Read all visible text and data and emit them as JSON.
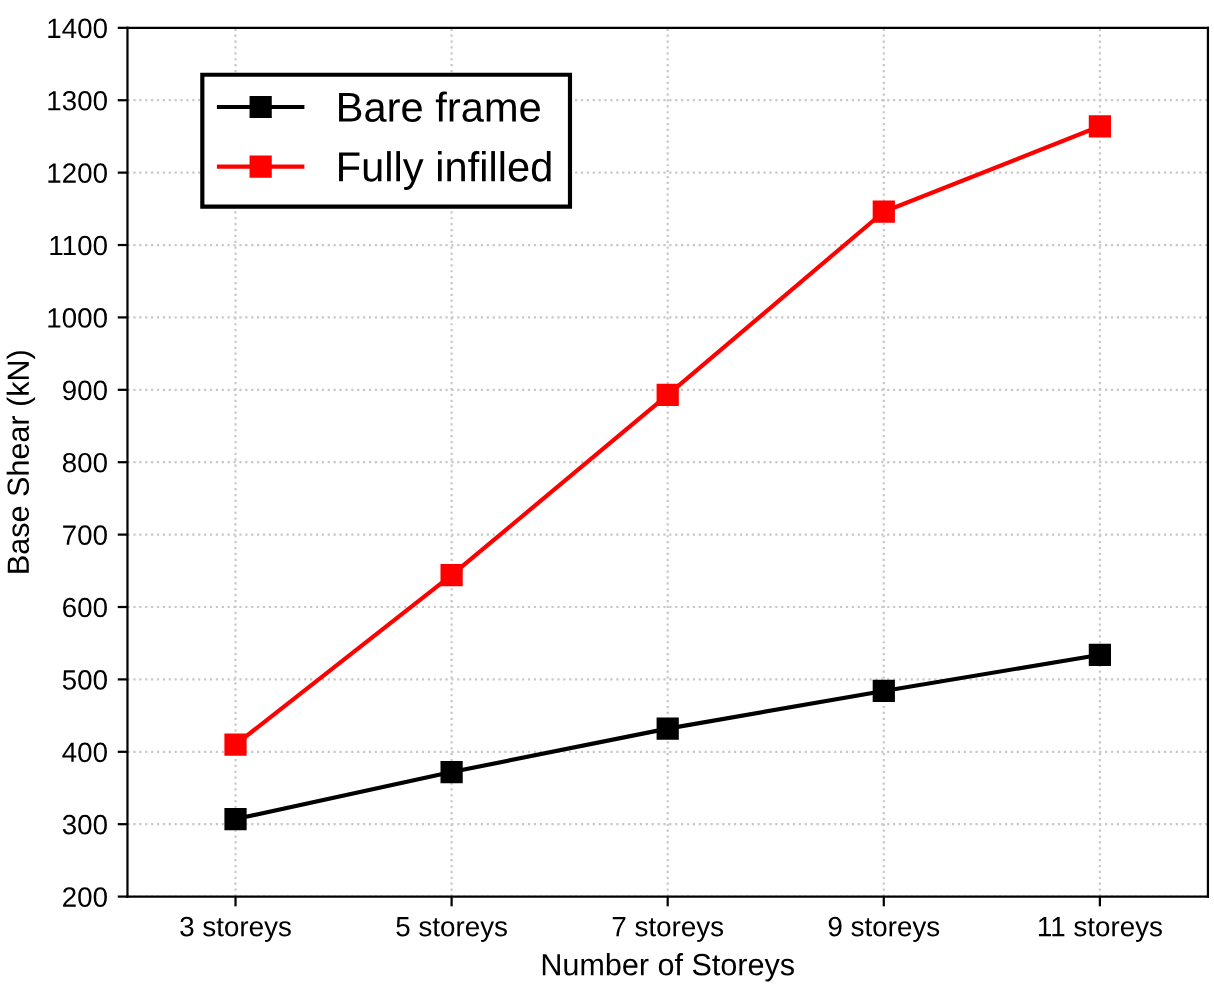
{
  "chart_data": {
    "type": "line",
    "xlabel": "Number of Storeys",
    "ylabel": "Base Shear (kN)",
    "categories": [
      "3 storeys",
      "5 storeys",
      "7 storeys",
      "9 storeys",
      "11 storeys"
    ],
    "series": [
      {
        "name": "Bare frame",
        "color": "#000000",
        "values": [
          307,
          372,
          432,
          484,
          534
        ]
      },
      {
        "name": "Fully infilled",
        "color": "#ff0000",
        "values": [
          410,
          644,
          893,
          1146,
          1264
        ]
      }
    ],
    "ylim": [
      200,
      1400
    ],
    "yticks": [
      200,
      300,
      400,
      500,
      600,
      700,
      800,
      900,
      1000,
      1100,
      1200,
      1300,
      1400
    ],
    "grid": true,
    "legend": "top left",
    "marker": "square",
    "line_style": "solid"
  }
}
